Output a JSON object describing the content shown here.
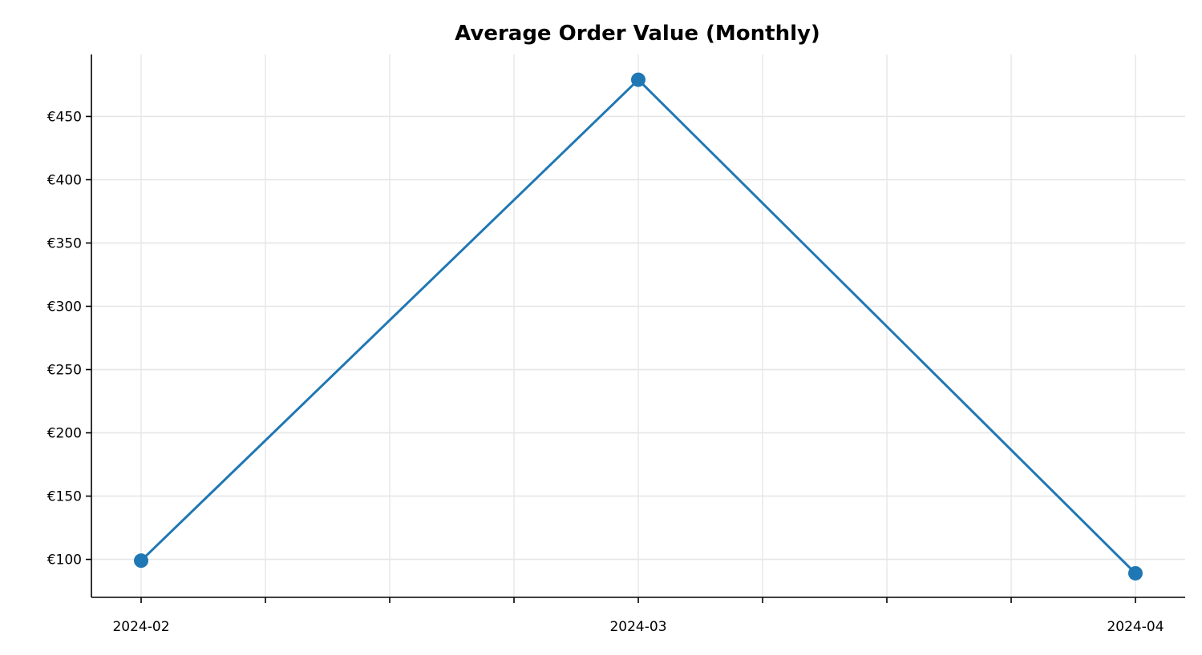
{
  "chart_data": {
    "type": "line",
    "title": "Average Order Value (Monthly)",
    "xlabel": "",
    "ylabel": "",
    "x": [
      "2024-02",
      "2024-03",
      "2024-04"
    ],
    "series": [
      {
        "values": [
          99,
          479,
          89
        ],
        "color": "#1f77b4"
      }
    ],
    "x_ticks": [
      "2024-02",
      "2024-03",
      "2024-04"
    ],
    "x_minor_ticks": 3,
    "y_ticks": [
      100,
      150,
      200,
      250,
      300,
      350,
      400,
      450
    ],
    "y_tick_labels": [
      "€100",
      "€150",
      "€200",
      "€250",
      "€300",
      "€350",
      "€400",
      "€450"
    ],
    "ylim": [
      70,
      499
    ],
    "grid": true,
    "legend": "none"
  }
}
